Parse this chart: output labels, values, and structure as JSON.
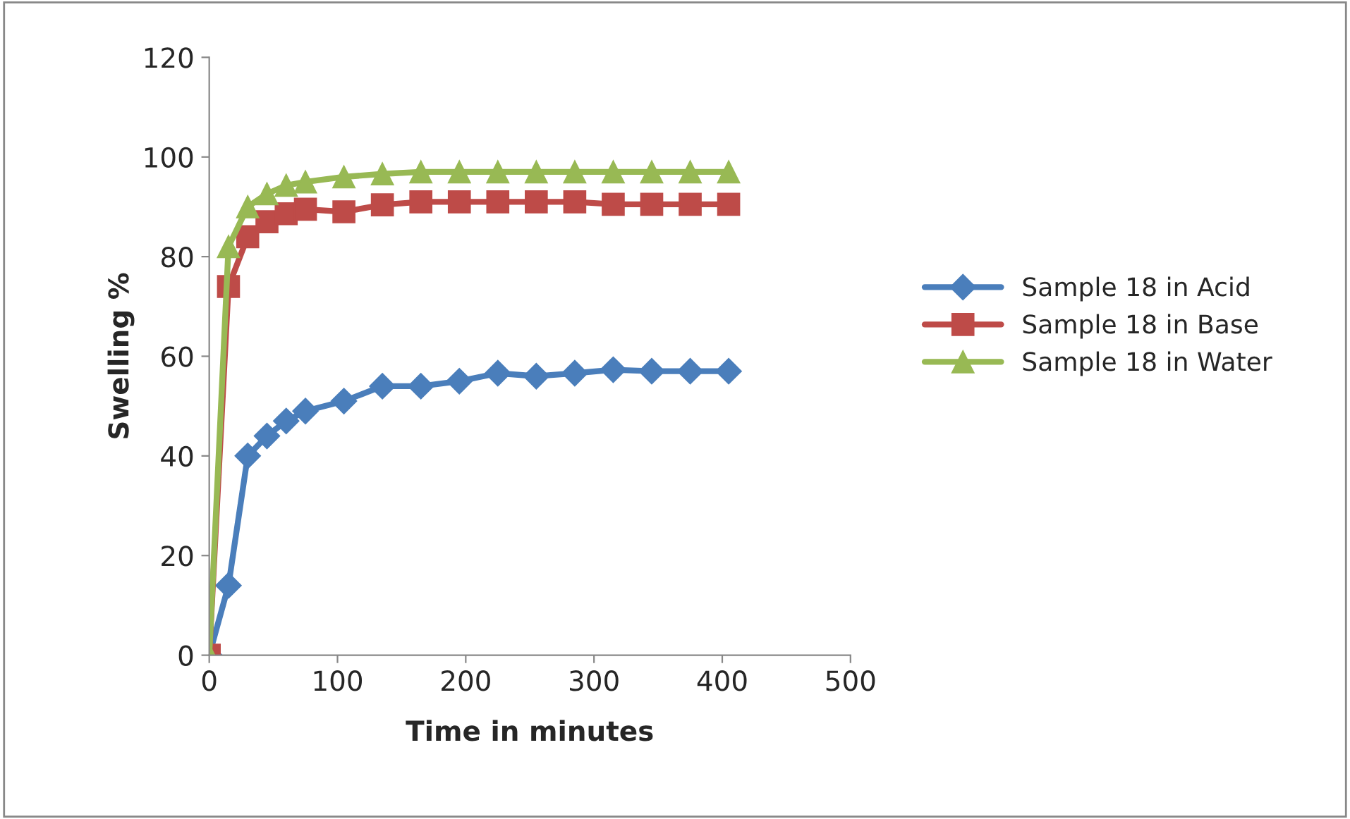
{
  "chart_data": {
    "type": "line",
    "xlabel": "Time in minutes",
    "ylabel": "Swelling %",
    "x": [
      0,
      15,
      30,
      45,
      60,
      75,
      105,
      135,
      165,
      195,
      225,
      255,
      285,
      315,
      345,
      375,
      405
    ],
    "xlim": [
      0,
      500
    ],
    "xticks": [
      0,
      100,
      200,
      300,
      400,
      500
    ],
    "ylim": [
      0,
      120
    ],
    "yticks": [
      0,
      20,
      40,
      60,
      80,
      100,
      120
    ],
    "grid": false,
    "legend": "right",
    "series": [
      {
        "name": "Sample 18 in Acid",
        "color": "#4a7ebb",
        "marker": "diamond",
        "values": [
          0,
          14,
          40,
          44,
          47,
          49,
          51,
          54,
          54,
          55,
          56.6,
          56,
          56.6,
          57.3,
          57,
          57,
          57
        ]
      },
      {
        "name": "Sample 18 in Base",
        "color": "#be4b48",
        "marker": "square",
        "values": [
          0,
          74,
          84,
          87,
          88.6,
          89.5,
          89,
          90.4,
          91,
          91,
          91,
          91,
          91,
          90.5,
          90.5,
          90.5,
          90.5
        ]
      },
      {
        "name": "Sample 18 in Water",
        "color": "#98b954",
        "marker": "triangle",
        "values": [
          0,
          82,
          90,
          92.6,
          94.3,
          95,
          96,
          96.6,
          97,
          97,
          97,
          97,
          97,
          97,
          97,
          97,
          97
        ]
      }
    ]
  }
}
